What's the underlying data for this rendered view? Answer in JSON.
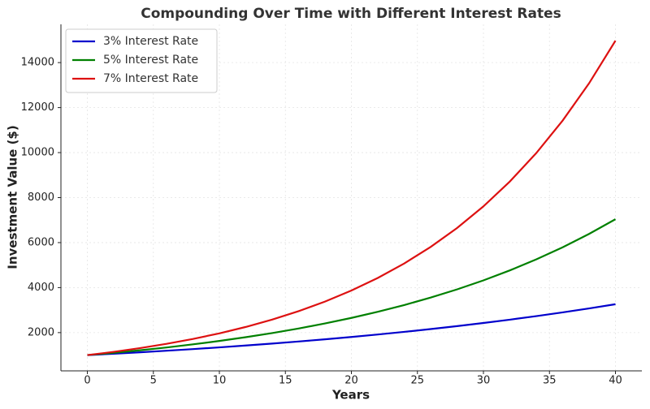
{
  "chart_data": {
    "type": "line",
    "title": "Compounding Over Time with Different Interest Rates",
    "x_label": "Years",
    "y_label": "Investment Value ($)",
    "x": [
      0,
      2,
      4,
      6,
      8,
      10,
      12,
      14,
      16,
      18,
      20,
      22,
      24,
      26,
      28,
      30,
      32,
      34,
      36,
      38,
      40
    ],
    "series": [
      {
        "name": "3% Interest Rate",
        "color": "#0000cc",
        "values": [
          1000,
          1061,
          1126,
          1194,
          1267,
          1344,
          1426,
          1513,
          1605,
          1702,
          1806,
          1916,
          2033,
          2157,
          2288,
          2427,
          2575,
          2732,
          2898,
          3075,
          3262
        ]
      },
      {
        "name": "5% Interest Rate",
        "color": "#008000",
        "values": [
          1000,
          1103,
          1216,
          1340,
          1478,
          1629,
          1796,
          1980,
          2183,
          2407,
          2653,
          2925,
          3225,
          3556,
          3920,
          4322,
          4765,
          5253,
          5792,
          6386,
          7040
        ]
      },
      {
        "name": "7% Interest Rate",
        "color": "#dd1111",
        "values": [
          1000,
          1145,
          1311,
          1501,
          1718,
          1967,
          2252,
          2579,
          2952,
          3380,
          3870,
          4430,
          5072,
          5807,
          6649,
          7612,
          8715,
          9978,
          11424,
          13079,
          14974
        ]
      }
    ],
    "xlim": [
      -2,
      42
    ],
    "xticks": [
      0,
      5,
      10,
      15,
      20,
      25,
      30,
      35,
      40
    ],
    "ylim": [
      300,
      15700
    ],
    "yticks": [
      2000,
      4000,
      6000,
      8000,
      10000,
      12000,
      14000
    ],
    "grid": true,
    "legend": "upper-left"
  }
}
